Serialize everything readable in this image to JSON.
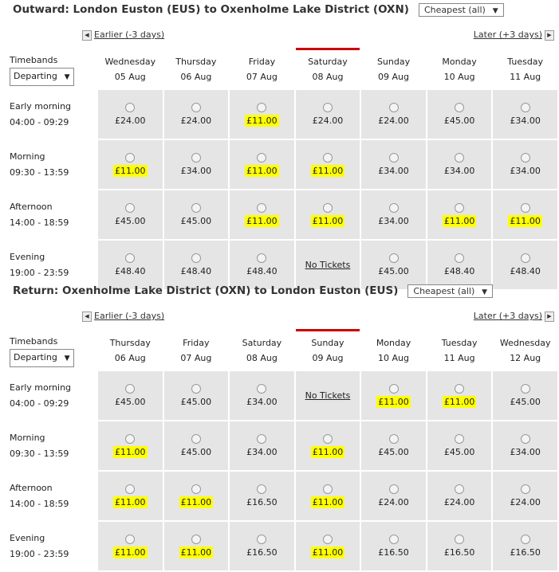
{
  "outward": {
    "title": "Outward: London Euston (EUS) to Oxenholme Lake District (OXN)",
    "fare_filter": "Cheapest (all)",
    "earlier": "Earlier (-3 days)",
    "later": "Later (+3 days)",
    "timebands_label": "Timebands",
    "timebands_select": "Departing",
    "selected_column": 3,
    "days": [
      {
        "day": "Wednesday",
        "date": "05 Aug"
      },
      {
        "day": "Thursday",
        "date": "06 Aug"
      },
      {
        "day": "Friday",
        "date": "07 Aug"
      },
      {
        "day": "Saturday",
        "date": "08 Aug"
      },
      {
        "day": "Sunday",
        "date": "09 Aug"
      },
      {
        "day": "Monday",
        "date": "10 Aug"
      },
      {
        "day": "Tuesday",
        "date": "11 Aug"
      }
    ],
    "rows": [
      {
        "name": "Early morning",
        "time": "04:00 - 09:29",
        "fares": [
          "£24.00",
          "£24.00",
          "£11.00",
          "£24.00",
          "£24.00",
          "£45.00",
          "£34.00"
        ]
      },
      {
        "name": "Morning",
        "time": "09:30 - 13:59",
        "fares": [
          "£11.00",
          "£34.00",
          "£11.00",
          "£11.00",
          "£34.00",
          "£34.00",
          "£34.00"
        ]
      },
      {
        "name": "Afternoon",
        "time": "14:00 - 18:59",
        "fares": [
          "£45.00",
          "£45.00",
          "£11.00",
          "£11.00",
          "£34.00",
          "£11.00",
          "£11.00"
        ]
      },
      {
        "name": "Evening",
        "time": "19:00 - 23:59",
        "fares": [
          "£48.40",
          "£48.40",
          "£48.40",
          "No Tickets",
          "£45.00",
          "£48.40",
          "£48.40"
        ]
      }
    ]
  },
  "return": {
    "title": "Return: Oxenholme Lake District (OXN) to London Euston (EUS)",
    "fare_filter": "Cheapest (all)",
    "earlier": "Earlier (-3 days)",
    "later": "Later (+3 days)",
    "timebands_label": "Timebands",
    "timebands_select": "Departing",
    "selected_column": 3,
    "days": [
      {
        "day": "Thursday",
        "date": "06 Aug"
      },
      {
        "day": "Friday",
        "date": "07 Aug"
      },
      {
        "day": "Saturday",
        "date": "08 Aug"
      },
      {
        "day": "Sunday",
        "date": "09 Aug"
      },
      {
        "day": "Monday",
        "date": "10 Aug"
      },
      {
        "day": "Tuesday",
        "date": "11 Aug"
      },
      {
        "day": "Wednesday",
        "date": "12 Aug"
      }
    ],
    "rows": [
      {
        "name": "Early morning",
        "time": "04:00 - 09:29",
        "fares": [
          "£45.00",
          "£45.00",
          "£34.00",
          "No Tickets",
          "£11.00",
          "£11.00",
          "£45.00"
        ]
      },
      {
        "name": "Morning",
        "time": "09:30 - 13:59",
        "fares": [
          "£11.00",
          "£45.00",
          "£34.00",
          "£11.00",
          "£45.00",
          "£45.00",
          "£34.00"
        ]
      },
      {
        "name": "Afternoon",
        "time": "14:00 - 18:59",
        "fares": [
          "£11.00",
          "£11.00",
          "£16.50",
          "£11.00",
          "£24.00",
          "£24.00",
          "£24.00"
        ]
      },
      {
        "name": "Evening",
        "time": "19:00 - 23:59",
        "fares": [
          "£11.00",
          "£11.00",
          "£16.50",
          "£11.00",
          "£16.50",
          "£16.50",
          "£16.50"
        ]
      }
    ]
  }
}
